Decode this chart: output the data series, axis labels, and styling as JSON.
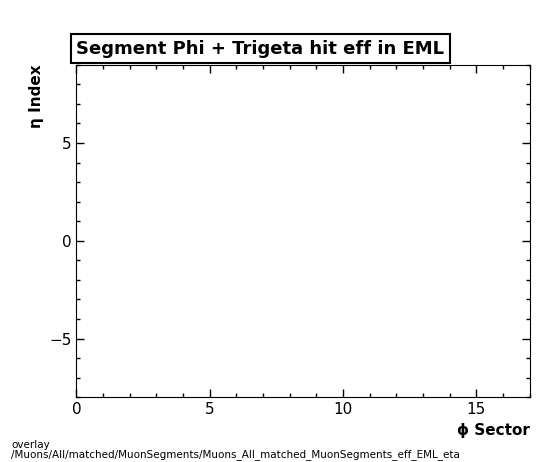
{
  "title": "Segment Phi + Trigeta hit eff in EML",
  "xlabel": "ϕ Sector",
  "ylabel": "η Index",
  "xlim": [
    0,
    17
  ],
  "ylim": [
    -8,
    9
  ],
  "xticks": [
    0,
    5,
    10,
    15
  ],
  "yticks": [
    -5,
    0,
    5
  ],
  "background_color": "#ffffff",
  "plot_bg_color": "#ffffff",
  "footer_text1": "overlay",
  "footer_text2": "/Muons/All/matched/MuonSegments/Muons_All_matched_MuonSegments_eff_EML_eta",
  "title_fontsize": 13,
  "axis_label_fontsize": 11,
  "tick_fontsize": 11,
  "footer_fontsize": 7.5
}
